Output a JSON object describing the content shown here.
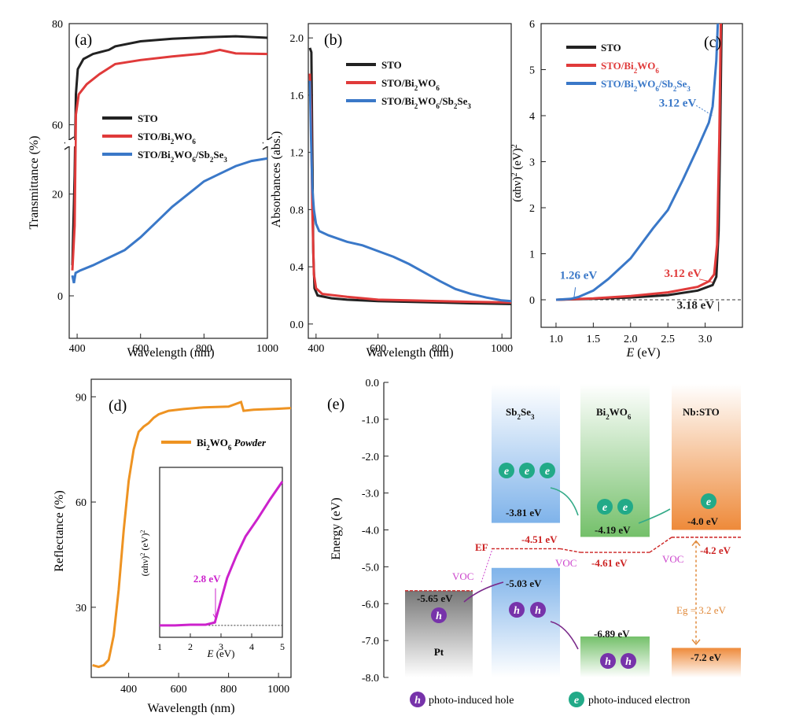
{
  "colors": {
    "sto": "#222222",
    "bwo": "#e03a3a",
    "sbse": "#3a78c8",
    "powder": "#ee9322",
    "inset": "#cc22cc",
    "level_red": "#cc2222",
    "voc": "#cc44cc",
    "eg": "#e08838",
    "pt": "#555555",
    "hole": "#7733aa",
    "electron": "#22aa88",
    "arrow_green": "#33aa88",
    "arrow_purple": "#7a2a8a"
  },
  "chart_data": [
    {
      "id": "a",
      "type": "line",
      "panel_label": "(a)",
      "xlabel": "Wavelength (nm)",
      "ylabel": "Transmittance (%)",
      "xlim": [
        375,
        1000
      ],
      "x_ticks": [
        "400",
        "600",
        "800",
        "1000"
      ],
      "y_ticks_upper": [
        "60",
        "80"
      ],
      "y_ticks_lower": [
        "0",
        "20"
      ],
      "axis_break": {
        "lower": [
          0,
          30
        ],
        "upper": [
          52,
          80
        ]
      },
      "legend": [
        "STO",
        "STO/Bi2WO6",
        "STO/Bi2WO6/Sb2Se3"
      ],
      "legend_html": [
        "STO",
        "STO/Bi<tspan baseline-shift=\"sub\" font-size=\"9\">2</tspan>WO<tspan baseline-shift=\"sub\" font-size=\"9\">6</tspan>",
        "STO/Bi<tspan baseline-shift=\"sub\" font-size=\"9\">2</tspan>WO<tspan baseline-shift=\"sub\" font-size=\"9\">6</tspan>/Sb<tspan baseline-shift=\"sub\" font-size=\"9\">2</tspan>Se<tspan baseline-shift=\"sub\" font-size=\"9\">3</tspan>"
      ],
      "series": [
        {
          "name": "STO",
          "color_key": "sto",
          "points": [
            [
              385,
              6
            ],
            [
              392,
              50
            ],
            [
              396,
              66
            ],
            [
              402,
              71
            ],
            [
              420,
              73
            ],
            [
              450,
              74
            ],
            [
              500,
              74.8
            ],
            [
              520,
              75.5
            ],
            [
              600,
              76.5
            ],
            [
              700,
              77
            ],
            [
              800,
              77.3
            ],
            [
              900,
              77.5
            ],
            [
              1000,
              77.2
            ]
          ]
        },
        {
          "name": "STO/Bi2WO6",
          "color_key": "bwo",
          "points": [
            [
              385,
              5
            ],
            [
              392,
              40
            ],
            [
              396,
              62
            ],
            [
              405,
              66
            ],
            [
              430,
              68
            ],
            [
              470,
              70
            ],
            [
              520,
              72
            ],
            [
              600,
              72.8
            ],
            [
              700,
              73.5
            ],
            [
              800,
              74.1
            ],
            [
              850,
              74.8
            ],
            [
              900,
              74.1
            ],
            [
              1000,
              74
            ]
          ]
        },
        {
          "name": "STO/Bi2WO6/Sb2Se3",
          "color_key": "sbse",
          "points": [
            [
              385,
              4
            ],
            [
              390,
              2.5
            ],
            [
              395,
              4.5
            ],
            [
              410,
              5
            ],
            [
              450,
              6
            ],
            [
              500,
              7.5
            ],
            [
              550,
              9
            ],
            [
              600,
              11.5
            ],
            [
              650,
              14.5
            ],
            [
              700,
              17.5
            ],
            [
              750,
              20
            ],
            [
              800,
              22.5
            ],
            [
              850,
              24
            ],
            [
              900,
              25.5
            ],
            [
              950,
              26.5
            ],
            [
              1000,
              27
            ]
          ]
        }
      ]
    },
    {
      "id": "b",
      "type": "line",
      "panel_label": "(b)",
      "xlabel": "Wavelength (nm)",
      "ylabel": "Absorbances (abs.)",
      "xlim": [
        375,
        1030
      ],
      "ylim": [
        -0.1,
        2.1
      ],
      "x_ticks": [
        400,
        600,
        800,
        1000
      ],
      "y_ticks": [
        0.0,
        0.4,
        0.8,
        1.2,
        1.6,
        2.0
      ],
      "y_tick_labels": [
        "0.0",
        "0.4",
        "0.8",
        "1.2",
        "1.6",
        "2.0"
      ],
      "legend": [
        "STO",
        "STO/Bi2WO6",
        "STO/Bi2WO6/Sb2Se3"
      ],
      "legend_html": [
        "STO",
        "STO/Bi<tspan baseline-shift=\"sub\" font-size=\"9\">2</tspan>WO<tspan baseline-shift=\"sub\" font-size=\"9\">6</tspan>",
        "STO/Bi<tspan baseline-shift=\"sub\" font-size=\"9\">2</tspan>WO<tspan baseline-shift=\"sub\" font-size=\"9\">6</tspan>/Sb<tspan baseline-shift=\"sub\" font-size=\"9\">2</tspan>Se<tspan baseline-shift=\"sub\" font-size=\"9\">3</tspan>"
      ],
      "series": [
        {
          "name": "STO",
          "color_key": "sto",
          "points": [
            [
              380,
              1.93
            ],
            [
              385,
              1.9
            ],
            [
              388,
              1.2
            ],
            [
              391,
              0.5
            ],
            [
              395,
              0.25
            ],
            [
              405,
              0.2
            ],
            [
              450,
              0.18
            ],
            [
              500,
              0.17
            ],
            [
              600,
              0.16
            ],
            [
              700,
              0.155
            ],
            [
              800,
              0.15
            ],
            [
              900,
              0.145
            ],
            [
              1030,
              0.14
            ]
          ]
        },
        {
          "name": "STO/Bi2WO6",
          "color_key": "bwo",
          "points": [
            [
              380,
              1.75
            ],
            [
              384,
              1.5
            ],
            [
              388,
              0.8
            ],
            [
              393,
              0.35
            ],
            [
              400,
              0.25
            ],
            [
              420,
              0.21
            ],
            [
              500,
              0.19
            ],
            [
              600,
              0.17
            ],
            [
              700,
              0.165
            ],
            [
              800,
              0.16
            ],
            [
              900,
              0.155
            ],
            [
              1030,
              0.15
            ]
          ]
        },
        {
          "name": "STO/Bi2WO6/Sb2Se3",
          "color_key": "sbse",
          "points": [
            [
              380,
              1.7
            ],
            [
              384,
              1.3
            ],
            [
              388,
              0.95
            ],
            [
              393,
              0.8
            ],
            [
              400,
              0.7
            ],
            [
              410,
              0.65
            ],
            [
              440,
              0.62
            ],
            [
              500,
              0.575
            ],
            [
              550,
              0.55
            ],
            [
              600,
              0.51
            ],
            [
              650,
              0.47
            ],
            [
              700,
              0.42
            ],
            [
              750,
              0.36
            ],
            [
              800,
              0.3
            ],
            [
              850,
              0.245
            ],
            [
              900,
              0.21
            ],
            [
              950,
              0.185
            ],
            [
              1000,
              0.165
            ],
            [
              1030,
              0.16
            ]
          ]
        }
      ]
    },
    {
      "id": "c",
      "type": "line",
      "panel_label": "(c)",
      "xlabel": "E (eV)",
      "ylabel": "(αhν)2 (eV)2",
      "xlim": [
        0.8,
        3.5
      ],
      "ylim": [
        -0.35,
        6
      ],
      "x_ticks": [
        1.0,
        1.5,
        2.0,
        2.5,
        3.0
      ],
      "x_tick_labels": [
        "1.0",
        "1.5",
        "2.0",
        "2.5",
        "3.0"
      ],
      "y_ticks": [
        0,
        1,
        2,
        3,
        4,
        5,
        6
      ],
      "y_tick_labels": [
        "0",
        "1",
        "2",
        "3",
        "4",
        "5",
        "6"
      ],
      "legend": [
        "STO",
        "STO/Bi2WO6",
        "STO/Bi2WO6/Sb2Se3"
      ],
      "legend_html": [
        "STO",
        "STO/Bi<tspan baseline-shift=\"sub\" font-size=\"9\">2</tspan>WO<tspan baseline-shift=\"sub\" font-size=\"9\">6</tspan>",
        "STO/Bi<tspan baseline-shift=\"sub\" font-size=\"9\">2</tspan>WO<tspan baseline-shift=\"sub\" font-size=\"9\">6</tspan>/Sb<tspan baseline-shift=\"sub\" font-size=\"9\">2</tspan>Se<tspan baseline-shift=\"sub\" font-size=\"9\">3</tspan>"
      ],
      "series": [
        {
          "name": "STO",
          "color_key": "sto",
          "points": [
            [
              1.0,
              0.0
            ],
            [
              1.5,
              0.02
            ],
            [
              2.0,
              0.05
            ],
            [
              2.5,
              0.1
            ],
            [
              2.9,
              0.2
            ],
            [
              3.1,
              0.32
            ],
            [
              3.15,
              0.5
            ],
            [
              3.18,
              1.5
            ],
            [
              3.2,
              3.5
            ],
            [
              3.22,
              6
            ]
          ]
        },
        {
          "name": "STO/Bi2WO6",
          "color_key": "bwo",
          "points": [
            [
              1.0,
              0.0
            ],
            [
              1.5,
              0.03
            ],
            [
              2.0,
              0.08
            ],
            [
              2.5,
              0.16
            ],
            [
              2.9,
              0.28
            ],
            [
              3.05,
              0.4
            ],
            [
              3.12,
              0.55
            ],
            [
              3.16,
              1.2
            ],
            [
              3.19,
              3.5
            ],
            [
              3.21,
              6
            ]
          ]
        },
        {
          "name": "STO/Bi2WO6/Sb2Se3",
          "color_key": "sbse",
          "points": [
            [
              1.0,
              0.0
            ],
            [
              1.2,
              0.02
            ],
            [
              1.3,
              0.06
            ],
            [
              1.5,
              0.2
            ],
            [
              1.7,
              0.45
            ],
            [
              2.0,
              0.9
            ],
            [
              2.3,
              1.55
            ],
            [
              2.5,
              1.95
            ],
            [
              2.7,
              2.6
            ],
            [
              2.9,
              3.3
            ],
            [
              3.05,
              3.85
            ],
            [
              3.1,
              4.2
            ],
            [
              3.15,
              5.2
            ],
            [
              3.17,
              6
            ]
          ]
        }
      ],
      "baseline": [
        [
          1.0,
          0.0
        ],
        [
          3.5,
          0.0
        ]
      ],
      "annotations": [
        {
          "text": "3.12 eV",
          "color_key": "sbse",
          "at": [
            2.38,
            4.2
          ],
          "pointer": [
            [
              2.88,
              4.22
            ],
            [
              3.1,
              4.0
            ]
          ]
        },
        {
          "text": "1.26 eV",
          "color_key": "sbse",
          "at": [
            1.05,
            0.45
          ],
          "pointer": [
            [
              1.26,
              0.27
            ],
            [
              1.24,
              0.03
            ]
          ]
        },
        {
          "text": "3.12 eV",
          "color_key": "bwo",
          "at": [
            2.45,
            0.5
          ],
          "pointer": [
            [
              2.92,
              0.45
            ],
            [
              3.1,
              0.38
            ]
          ]
        },
        {
          "text": "3.18 eV",
          "color_key": "sto",
          "at": [
            2.62,
            -0.2
          ],
          "pointer": [
            [
              3.18,
              -0.25
            ],
            [
              3.18,
              -0.04
            ]
          ]
        }
      ]
    },
    {
      "id": "d",
      "type": "line",
      "panel_label": "(d)",
      "xlabel": "Wavelength (nm)",
      "ylabel": "Reflectance (%)",
      "xlim": [
        250,
        1050
      ],
      "ylim": [
        10,
        95
      ],
      "x_ticks": [
        400,
        600,
        800,
        1000
      ],
      "y_ticks": [
        30,
        60,
        90
      ],
      "legend": [
        "Bi2WO6 Powder"
      ],
      "series": [
        {
          "name": "Bi2WO6 Powder",
          "color_key": "powder",
          "points": [
            [
              255,
              13.5
            ],
            [
              280,
              13
            ],
            [
              300,
              13.5
            ],
            [
              320,
              15
            ],
            [
              340,
              22
            ],
            [
              360,
              35
            ],
            [
              380,
              52
            ],
            [
              400,
              66
            ],
            [
              420,
              75
            ],
            [
              440,
              80
            ],
            [
              460,
              81.5
            ],
            [
              480,
              82.5
            ],
            [
              500,
              84
            ],
            [
              520,
              85
            ],
            [
              560,
              86
            ],
            [
              620,
              86.5
            ],
            [
              700,
              87
            ],
            [
              800,
              87.2
            ],
            [
              850,
              88.5
            ],
            [
              860,
              86
            ],
            [
              900,
              86.3
            ],
            [
              1000,
              86.6
            ],
            [
              1050,
              86.8
            ]
          ]
        }
      ],
      "inset": {
        "xlabel": "E (eV)",
        "ylabel": "(αhν)2 (eV)2",
        "xlim": [
          1,
          5
        ],
        "ylim": [
          0,
          1
        ],
        "x_ticks": [
          1,
          2,
          3,
          4,
          5
        ],
        "annotation": "2.8 eV",
        "points": [
          [
            1.0,
            0.08
          ],
          [
            1.5,
            0.08
          ],
          [
            2.0,
            0.085
          ],
          [
            2.5,
            0.085
          ],
          [
            2.8,
            0.1
          ],
          [
            3.0,
            0.25
          ],
          [
            3.2,
            0.4
          ],
          [
            3.5,
            0.55
          ],
          [
            3.8,
            0.68
          ],
          [
            4.2,
            0.8
          ],
          [
            4.6,
            0.93
          ],
          [
            5.0,
            1.05
          ]
        ]
      }
    },
    {
      "id": "e",
      "type": "diagram",
      "panel_label": "(e)",
      "ylabel": "Energy (eV)",
      "ylim": [
        -8.0,
        0.0
      ],
      "y_ticks": [
        0,
        -1,
        -2,
        -3,
        -4,
        -5,
        -6,
        -7,
        -8
      ],
      "y_tick_labels": [
        "0.0",
        "-1.0",
        "-2.0",
        "-3.0",
        "-4.0",
        "-5.0",
        "-6.0",
        "-7.0",
        "-8.0"
      ],
      "materials": [
        "Sb2Se3",
        "Bi2WO6",
        "Nb:STO",
        "Pt"
      ],
      "labels": {
        "sbse_cb": "-3.81 eV",
        "sbse_vb": "-5.03 eV",
        "bwo_cb": "-4.19 eV",
        "bwo_vb": "-6.89 eV",
        "sto_cb": "-4.0 eV",
        "sto_vb": "-7.2 eV",
        "pt": "-5.65 eV",
        "ef_sbse": "-4.51 eV",
        "ef_bwo": "-4.61 eV",
        "ef_sto": "-4.2 eV",
        "voc": "VOC",
        "ef": "EF",
        "eg": "Eg = 3.2 eV",
        "e": "e",
        "h": "h"
      },
      "legend": [
        "photo-induced hole",
        "photo-induced electron"
      ]
    }
  ]
}
